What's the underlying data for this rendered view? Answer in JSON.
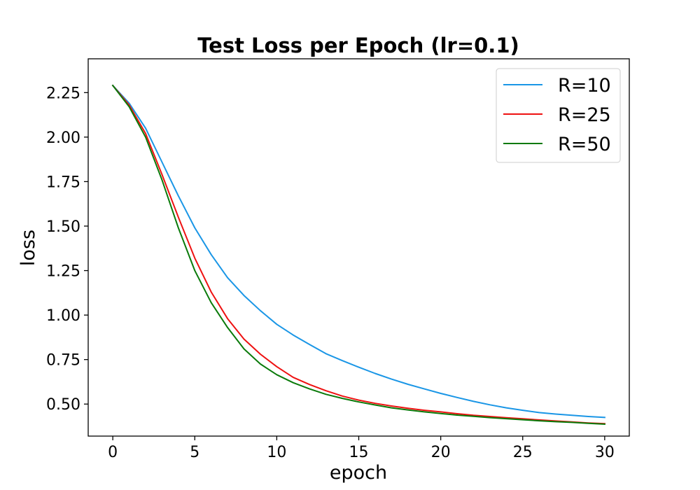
{
  "chart_data": {
    "type": "line",
    "title": "Test Loss per Epoch (lr=0.1)",
    "xlabel": "epoch",
    "ylabel": "loss",
    "xlim": [
      -1.5,
      31.5
    ],
    "ylim": [
      0.32,
      2.44
    ],
    "xticks": [
      0,
      5,
      10,
      15,
      20,
      25,
      30
    ],
    "yticks": [
      0.5,
      0.75,
      1.0,
      1.25,
      1.5,
      1.75,
      2.0,
      2.25
    ],
    "ytick_labels": [
      "0.50",
      "0.75",
      "1.00",
      "1.25",
      "1.50",
      "1.75",
      "2.00",
      "2.25"
    ],
    "grid": false,
    "legend_position": "top-right",
    "x": [
      0,
      1,
      2,
      3,
      4,
      5,
      6,
      7,
      8,
      9,
      10,
      11,
      12,
      13,
      14,
      15,
      16,
      17,
      18,
      19,
      20,
      21,
      22,
      23,
      24,
      25,
      26,
      27,
      28,
      29,
      30
    ],
    "series": [
      {
        "name": "R=10",
        "color": "#1a96e6",
        "values": [
          2.29,
          2.19,
          2.05,
          1.86,
          1.67,
          1.49,
          1.34,
          1.21,
          1.11,
          1.025,
          0.948,
          0.888,
          0.835,
          0.783,
          0.744,
          0.707,
          0.672,
          0.64,
          0.611,
          0.585,
          0.56,
          0.537,
          0.515,
          0.496,
          0.479,
          0.465,
          0.452,
          0.444,
          0.437,
          0.43,
          0.425
        ]
      },
      {
        "name": "R=25",
        "color": "#ee1111",
        "values": [
          2.29,
          2.18,
          2.02,
          1.79,
          1.55,
          1.32,
          1.13,
          0.98,
          0.865,
          0.78,
          0.71,
          0.65,
          0.61,
          0.575,
          0.545,
          0.522,
          0.504,
          0.489,
          0.476,
          0.465,
          0.456,
          0.446,
          0.437,
          0.43,
          0.423,
          0.417,
          0.411,
          0.405,
          0.4,
          0.394,
          0.39
        ]
      },
      {
        "name": "R=50",
        "color": "#0a7a0a",
        "values": [
          2.29,
          2.17,
          2.0,
          1.76,
          1.49,
          1.25,
          1.07,
          0.93,
          0.81,
          0.725,
          0.665,
          0.62,
          0.585,
          0.555,
          0.532,
          0.512,
          0.495,
          0.479,
          0.467,
          0.456,
          0.447,
          0.438,
          0.431,
          0.424,
          0.418,
          0.412,
          0.406,
          0.401,
          0.397,
          0.392,
          0.387
        ]
      }
    ]
  }
}
